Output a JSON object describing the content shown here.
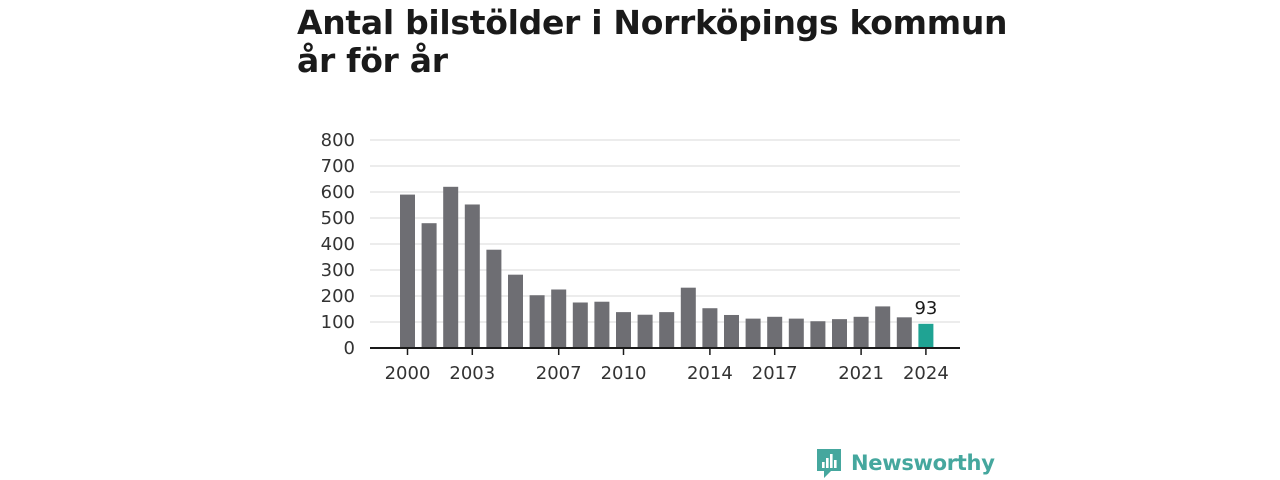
{
  "header": {
    "title_line1": "Antal bilstölder i Norrköpings kommun",
    "title_line2": "år för år"
  },
  "brand": {
    "name": "Newsworthy",
    "icon": "newsworthy-logo-icon",
    "color": "#45a79e"
  },
  "colors": {
    "bar": "#6e6e73",
    "highlight": "#1fa393",
    "grid": "#d9d9d9",
    "axis": "#1a1a1a"
  },
  "chart_data": {
    "type": "bar",
    "title": "Antal bilstölder i Norrköpings kommun år för år",
    "xlabel": "",
    "ylabel": "",
    "categories": [
      "2000",
      "2001",
      "2002",
      "2003",
      "2004",
      "2005",
      "2006",
      "2007",
      "2008",
      "2009",
      "2010",
      "2011",
      "2012",
      "2013",
      "2014",
      "2015",
      "2016",
      "2017",
      "2018",
      "2019",
      "2020",
      "2021",
      "2022",
      "2023",
      "2024"
    ],
    "values": [
      590,
      480,
      620,
      552,
      378,
      282,
      203,
      225,
      175,
      178,
      138,
      128,
      138,
      232,
      153,
      127,
      113,
      120,
      113,
      103,
      111,
      120,
      160,
      118,
      93
    ],
    "highlight_index": 24,
    "data_labels": [
      {
        "index": 24,
        "text": "93"
      }
    ],
    "ylim": [
      0,
      800
    ],
    "yticks": [
      0,
      100,
      200,
      300,
      400,
      500,
      600,
      700,
      800
    ],
    "xtick_labels": [
      {
        "index": 0,
        "text": "2000"
      },
      {
        "index": 3,
        "text": "2003"
      },
      {
        "index": 7,
        "text": "2007"
      },
      {
        "index": 10,
        "text": "2010"
      },
      {
        "index": 14,
        "text": "2014"
      },
      {
        "index": 17,
        "text": "2017"
      },
      {
        "index": 21,
        "text": "2021"
      },
      {
        "index": 24,
        "text": "2024"
      }
    ],
    "grid": true,
    "legend": "none"
  }
}
